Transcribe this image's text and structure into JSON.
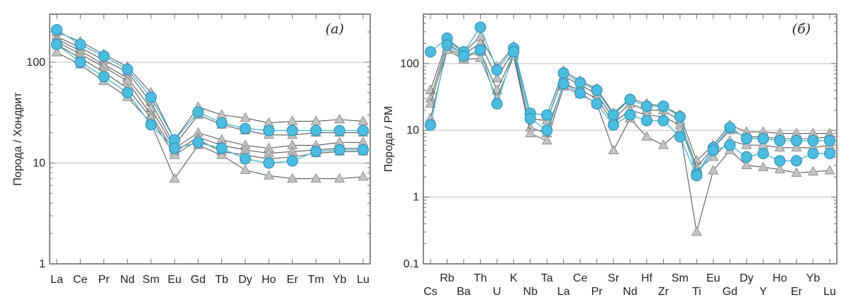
{
  "colors": {
    "gray_line": "#5a5a5a",
    "triangle_fill": "#c4c4c4",
    "triangle_stroke": "#8f8f8f",
    "blue_line": "#4db8d8",
    "circle_fill": "#4cbbe0",
    "circle_stroke": "#2a88ab"
  },
  "chart_data": [
    {
      "type": "line",
      "panel_label": "(а)",
      "ylabel": "Порода / Хондрит",
      "yscale": "log",
      "ylim": [
        1,
        300
      ],
      "yticks": [
        1,
        10,
        100
      ],
      "ytick_labels": [
        "1",
        "10",
        "100"
      ],
      "grid": true,
      "categories": [
        "La",
        "Ce",
        "Pr",
        "Nd",
        "Sm",
        "Eu",
        "Gd",
        "Tb",
        "Dy",
        "Ho",
        "Er",
        "Tm",
        "Yb",
        "Lu"
      ],
      "series": [
        {
          "marker": "triangle",
          "values": [
            200,
            160,
            120,
            90,
            50,
            17,
            36,
            30,
            28,
            25,
            26,
            26,
            27,
            26
          ]
        },
        {
          "marker": "triangle",
          "values": [
            180,
            140,
            105,
            80,
            40,
            15,
            30,
            24,
            21,
            19,
            19,
            20,
            20,
            20
          ]
        },
        {
          "marker": "triangle",
          "values": [
            170,
            130,
            95,
            70,
            35,
            14,
            20,
            17,
            15,
            14,
            15,
            15,
            16,
            16
          ]
        },
        {
          "marker": "triangle",
          "values": [
            160,
            120,
            90,
            65,
            30,
            13,
            18,
            15,
            13.5,
            12.5,
            13,
            13.5,
            14,
            14
          ]
        },
        {
          "marker": "triangle",
          "values": [
            150,
            110,
            80,
            55,
            28,
            12,
            17,
            13,
            12,
            11,
            11.5,
            12.5,
            13,
            13
          ]
        },
        {
          "marker": "triangle",
          "values": [
            125,
            95,
            65,
            45,
            25,
            7,
            15,
            12,
            8.5,
            7.5,
            7,
            7,
            7,
            7.3
          ]
        },
        {
          "marker": "circle",
          "values": [
            210,
            150,
            115,
            85,
            45,
            17,
            32,
            25,
            22,
            21,
            21,
            21,
            21,
            21
          ]
        },
        {
          "marker": "circle",
          "values": [
            150,
            100,
            72,
            50,
            24,
            14,
            16,
            14,
            11,
            10,
            10.5,
            13,
            13.5,
            13.5
          ]
        }
      ]
    },
    {
      "type": "line",
      "panel_label": "(б)",
      "ylabel": "Порода / PM",
      "yscale": "log",
      "ylim": [
        0.1,
        550
      ],
      "yticks": [
        0.1,
        1,
        10,
        100
      ],
      "ytick_labels": [
        "0.1",
        "1",
        "10",
        "100"
      ],
      "grid": true,
      "categories": [
        "Cs",
        "Rb",
        "Ba",
        "Th",
        "U",
        "K",
        "Nb",
        "Ta",
        "La",
        "Ce",
        "Pr",
        "Sr",
        "Nd",
        "Hf",
        "Zr",
        "Sm",
        "Ti",
        "Eu",
        "Gd",
        "Dy",
        "Y",
        "Ho",
        "Er",
        "Yb",
        "Lu"
      ],
      "series": [
        {
          "marker": "triangle",
          "values": [
            40,
            220,
            150,
            250,
            90,
            180,
            18,
            17,
            78,
            55,
            42,
            18,
            30,
            25,
            23,
            17,
            3.5,
            6,
            12,
            9.5,
            9.5,
            9,
            9,
            9,
            9
          ]
        },
        {
          "marker": "triangle",
          "values": [
            30,
            200,
            140,
            200,
            60,
            160,
            15,
            14,
            65,
            48,
            35,
            15,
            25,
            20,
            20,
            14,
            2.8,
            5.5,
            10,
            8,
            8,
            7.5,
            7.5,
            7.5,
            8
          ]
        },
        {
          "marker": "triangle",
          "values": [
            25,
            170,
            125,
            150,
            40,
            140,
            11,
            9,
            50,
            40,
            30,
            13,
            20,
            17,
            16,
            12,
            2.5,
            4,
            7,
            6,
            6,
            5.5,
            5.5,
            5.5,
            6
          ]
        },
        {
          "marker": "triangle",
          "values": [
            15,
            160,
            115,
            120,
            30,
            130,
            9,
            7,
            45,
            35,
            25,
            5,
            15,
            8,
            6,
            10,
            0.3,
            2.5,
            5,
            3,
            2.8,
            2.6,
            2.3,
            2.4,
            2.5
          ]
        },
        {
          "marker": "circle",
          "values": [
            150,
            240,
            150,
            350,
            80,
            170,
            18,
            17,
            72,
            52,
            40,
            17,
            29,
            23,
            23,
            16,
            2.2,
            5.5,
            11,
            7.5,
            7.5,
            7,
            7,
            7,
            7
          ]
        },
        {
          "marker": "circle",
          "values": [
            12,
            190,
            130,
            160,
            25,
            150,
            15,
            10,
            50,
            36,
            25,
            12,
            17,
            14,
            14,
            8,
            2.1,
            5,
            6,
            4,
            4.5,
            3.5,
            3.5,
            4.5,
            4.5
          ]
        }
      ]
    }
  ]
}
